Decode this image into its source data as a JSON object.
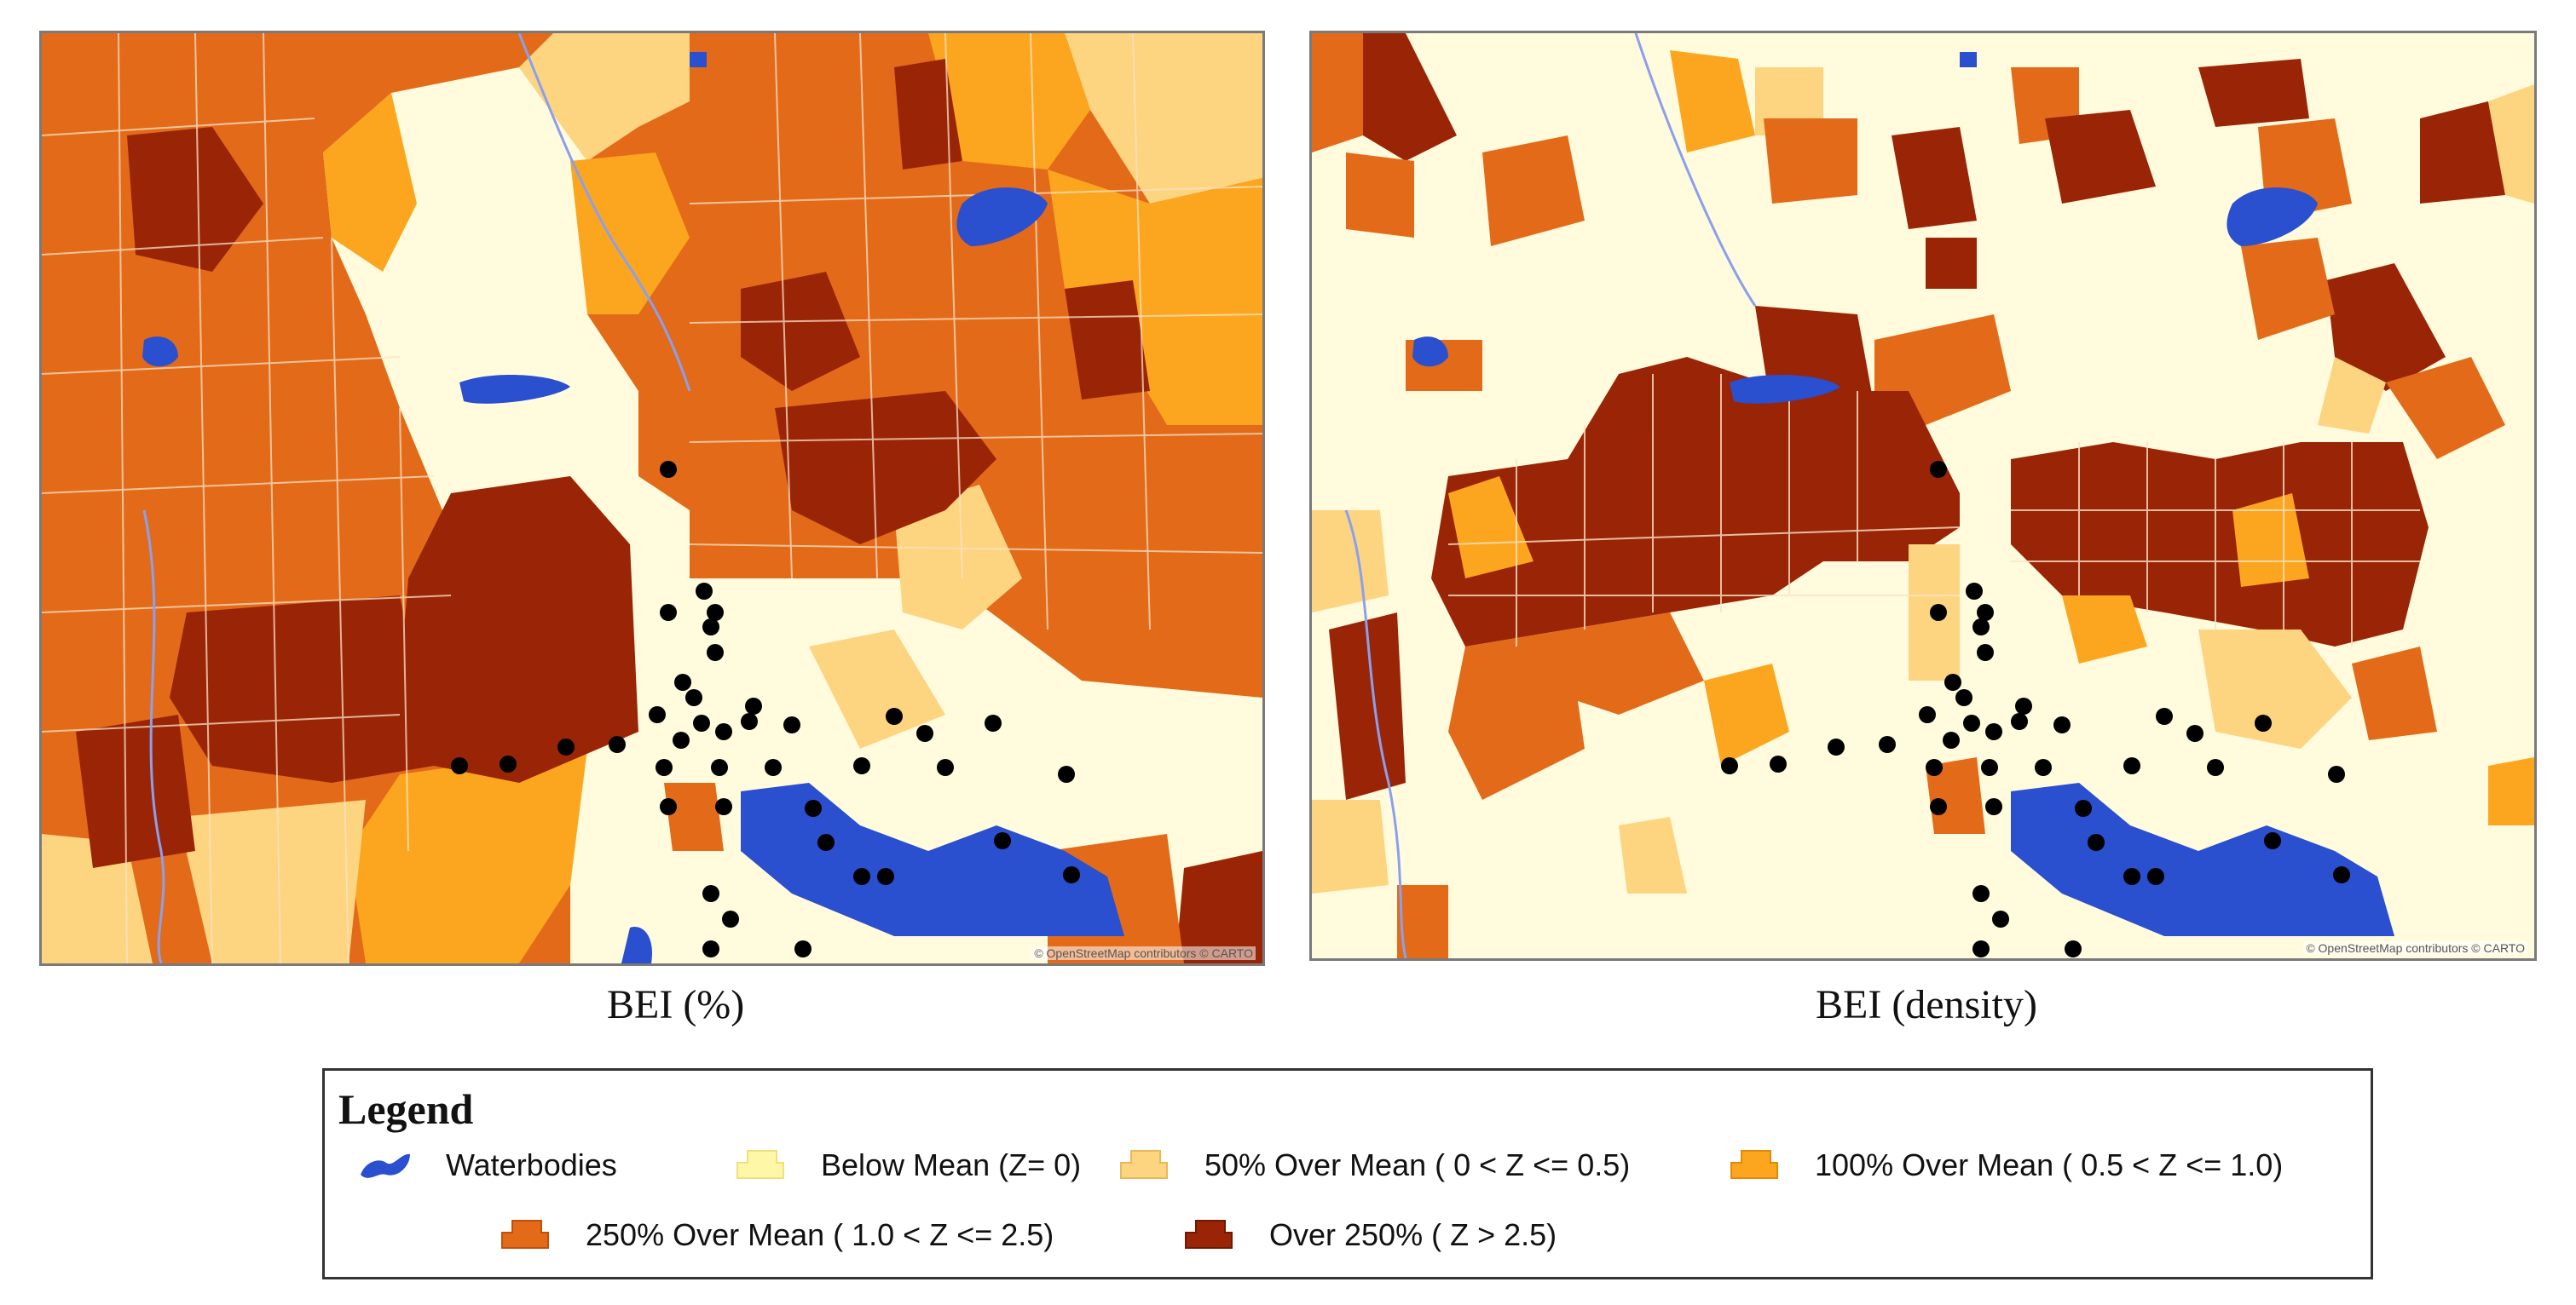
{
  "maps": [
    {
      "caption": "BEI (%)",
      "attribution": "© OpenStreetMap contributors © CARTO"
    },
    {
      "caption": "BEI (density)",
      "attribution": "© OpenStreetMap contributors © CARTO"
    }
  ],
  "legend": {
    "title": "Legend",
    "items": [
      {
        "label": "Waterbodies",
        "color": "#2a4fcf",
        "icon": "water-icon"
      },
      {
        "label": "Below Mean (Z= 0)",
        "color": "#fff7a8",
        "icon": "polygon-icon"
      },
      {
        "label": "50% Over Mean ( 0 < Z <= 0.5)",
        "color": "#fdd480",
        "icon": "polygon-icon"
      },
      {
        "label": "100% Over Mean ( 0.5 < Z <= 1.0)",
        "color": "#fba61e",
        "icon": "polygon-icon"
      },
      {
        "label": "250% Over Mean ( 1.0 < Z <= 2.5)",
        "color": "#e26a18",
        "icon": "polygon-icon"
      },
      {
        "label": "Over 250% ( Z > 2.5)",
        "color": "#9a2506",
        "icon": "polygon-icon"
      }
    ]
  },
  "colors": {
    "background": "#fffbdc",
    "water": "#2a4fcf",
    "point": "#000000"
  }
}
